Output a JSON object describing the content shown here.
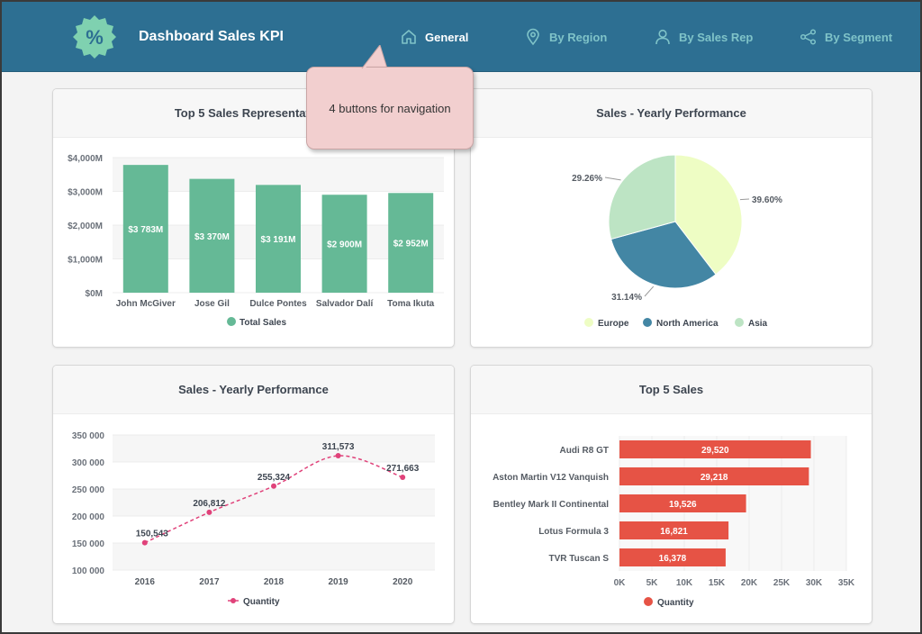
{
  "header": {
    "title": "Dashboard Sales KPI",
    "logo_icon": "percent-badge-icon",
    "nav": [
      {
        "label": "General",
        "icon": "home-icon",
        "active": true
      },
      {
        "label": "By Region",
        "icon": "map-pin-icon",
        "active": false
      },
      {
        "label": "By Sales Rep",
        "icon": "user-icon",
        "active": false
      },
      {
        "label": "By Segment",
        "icon": "share-nodes-icon",
        "active": false
      }
    ]
  },
  "callout": {
    "text": "4 buttons for navigation"
  },
  "colors": {
    "header": "#2d6f92",
    "bar_green": "#65b996",
    "bar_red": "#e65345",
    "line_pink": "#e0427a",
    "pie_europe": "#eefdc4",
    "pie_north_america": "#4386a4",
    "pie_asia": "#bde4c4"
  },
  "chart_data": [
    {
      "type": "bar",
      "title": "Top 5 Sales Representatives",
      "categories": [
        "John McGiver",
        "Jose Gil",
        "Dulce Pontes",
        "Salvador Dalí",
        "Toma Ikuta"
      ],
      "values": [
        3783,
        3370,
        3191,
        2900,
        2952
      ],
      "data_labels": [
        "$3 783M",
        "$3 370M",
        "$3 191M",
        "$2 900M",
        "$2 952M"
      ],
      "y_ticks": [
        "$0M",
        "$1,000M",
        "$2,000M",
        "$3,000M",
        "$4,000M"
      ],
      "ylim": [
        0,
        4000
      ],
      "legend": [
        "Total Sales"
      ],
      "legend_position": "bottom"
    },
    {
      "type": "pie",
      "title": "Sales - Yearly Performance",
      "categories": [
        "Europe",
        "North America",
        "Asia"
      ],
      "values": [
        39.6,
        31.14,
        29.26
      ],
      "data_labels": [
        "39.60%",
        "31.14%",
        "29.26%"
      ],
      "legend": [
        "Europe",
        "North America",
        "Asia"
      ],
      "legend_position": "bottom"
    },
    {
      "type": "line",
      "title": "Sales - Yearly Performance",
      "x": [
        "2016",
        "2017",
        "2018",
        "2019",
        "2020"
      ],
      "values": [
        150543,
        206812,
        255324,
        311573,
        271663
      ],
      "data_labels": [
        "150,543",
        "206,812",
        "255,324",
        "311,573",
        "271,663"
      ],
      "y_ticks": [
        "100 000",
        "150 000",
        "200 000",
        "250 000",
        "300 000",
        "350 000"
      ],
      "ylim": [
        100000,
        350000
      ],
      "legend": [
        "Quantity"
      ],
      "legend_position": "bottom"
    },
    {
      "type": "bar",
      "orientation": "horizontal",
      "title": "Top 5 Sales",
      "categories": [
        "Audi R8 GT",
        "Aston Martin V12 Vanquish",
        "Bentley Mark II Continental",
        "Lotus Formula 3",
        "TVR Tuscan S"
      ],
      "values": [
        29520,
        29218,
        19526,
        16821,
        16378
      ],
      "data_labels": [
        "29,520",
        "29,218",
        "19,526",
        "16,821",
        "16,378"
      ],
      "x_ticks": [
        "0K",
        "5K",
        "10K",
        "15K",
        "20K",
        "25K",
        "30K",
        "35K"
      ],
      "xlim": [
        0,
        35000
      ],
      "legend": [
        "Quantity"
      ],
      "legend_position": "bottom"
    }
  ]
}
